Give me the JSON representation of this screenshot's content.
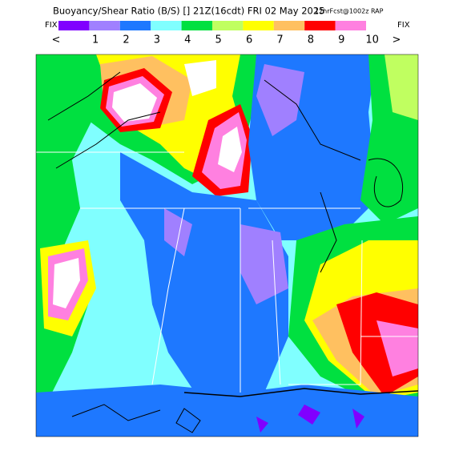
{
  "title": "Buoyancy/Shear Ratio (B/S) [] 21Z(16cdt) FRI 02 May 2025",
  "subtitle": "12hrFcst@1002z RAP",
  "legend": {
    "fix_left": "FIX",
    "fix_right": "FIX",
    "colors": [
      "#8000ff",
      "#a080ff",
      "#1e78ff",
      "#80ffff",
      "#00e040",
      "#c0ff60",
      "#ffff00",
      "#ffc060",
      "#ff0000",
      "#ff80e0"
    ],
    "labels": [
      "<",
      "1",
      "2",
      "3",
      "4",
      "5",
      "6",
      "7",
      "8",
      "9",
      "10",
      ">"
    ]
  }
}
